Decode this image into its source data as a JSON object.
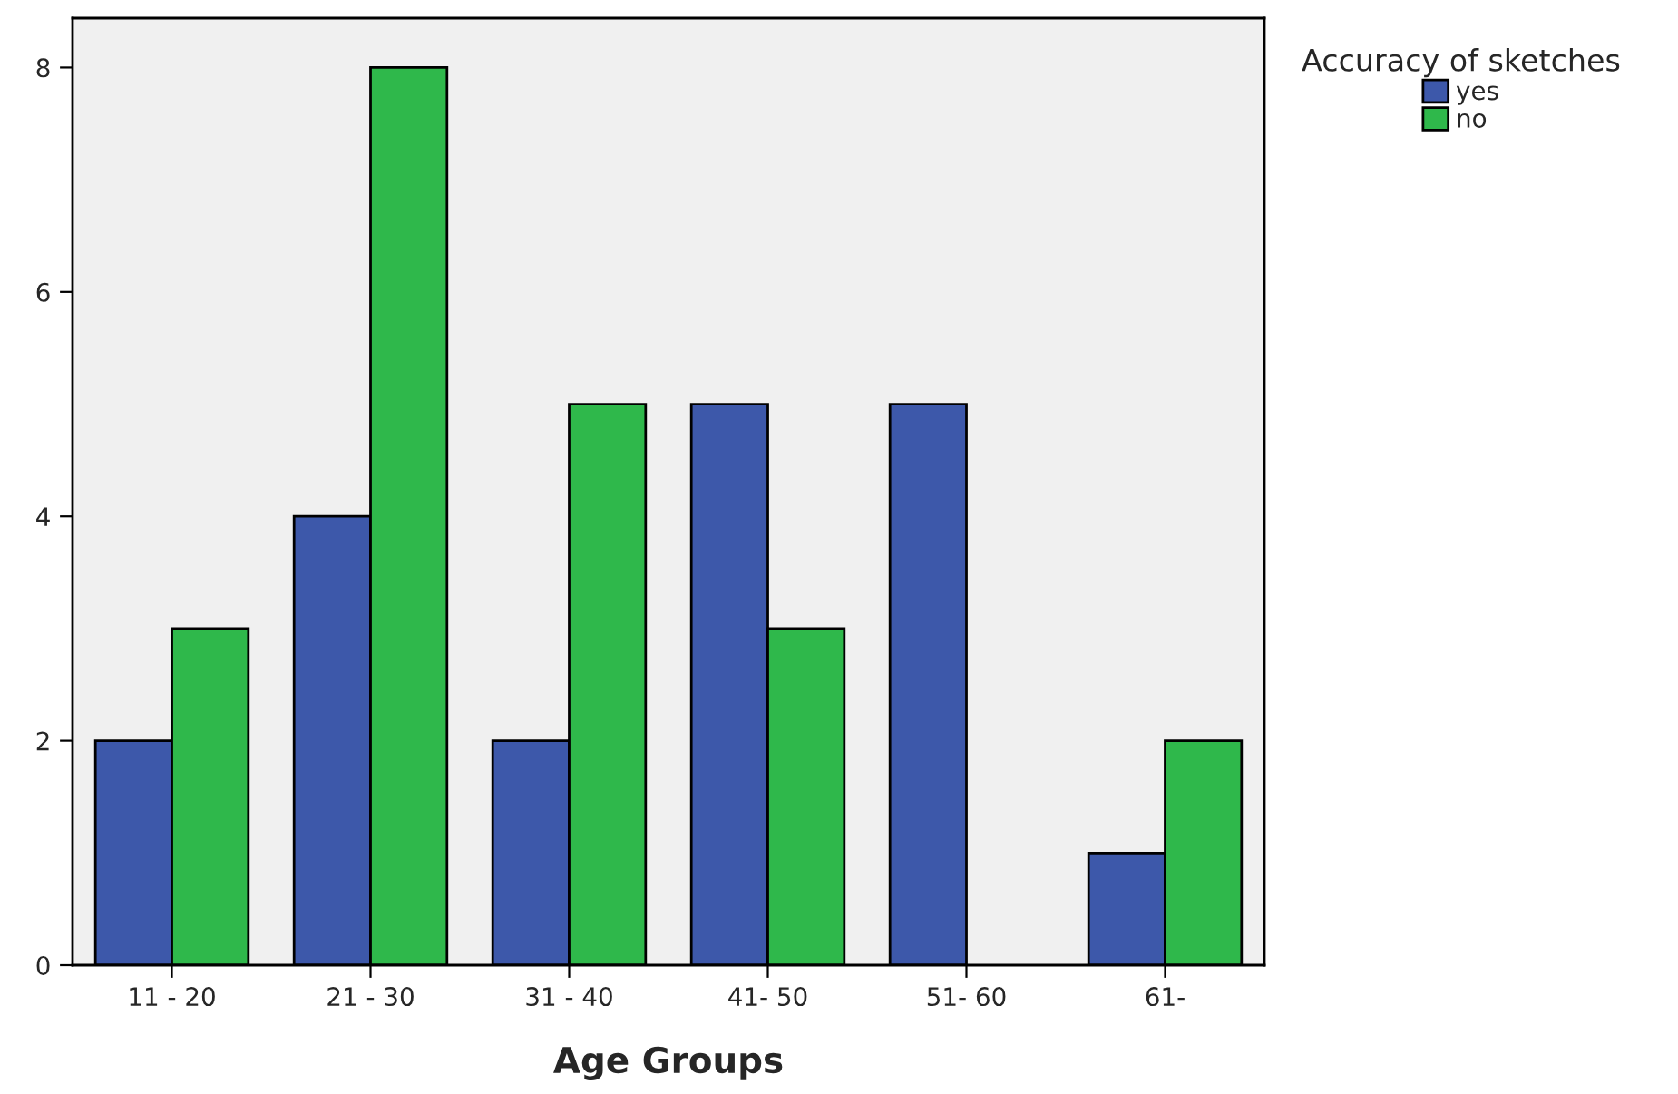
{
  "chart_data": {
    "type": "bar",
    "xlabel": "Age Groups",
    "legend_title": "Accuracy of sketches",
    "categories": [
      "11 - 20",
      "21 - 30",
      "31 - 40",
      "41- 50",
      "51- 60",
      "61-"
    ],
    "series": [
      {
        "name": "yes",
        "color": "#3d58aa",
        "values": [
          2,
          4,
          2,
          5,
          5,
          1
        ]
      },
      {
        "name": "no",
        "color": "#2fb84b",
        "values": [
          3,
          8,
          5,
          3,
          null,
          2
        ]
      }
    ],
    "ylim": [
      0,
      8.44
    ],
    "yticks": [
      0,
      2,
      4,
      6,
      8
    ],
    "grid": false,
    "legend": "top right"
  }
}
